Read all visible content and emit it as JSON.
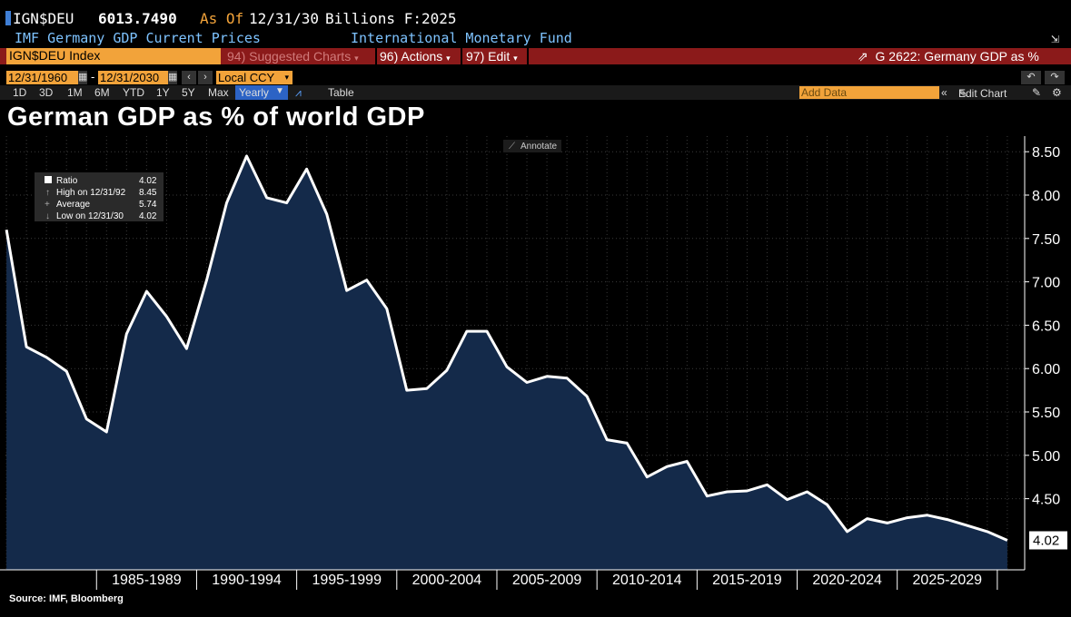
{
  "header": {
    "ticker": "IGN$DEU",
    "value": "6013.7490",
    "as_of_label": "As Of",
    "as_of_date": "12/31/30",
    "units": "Billions F:2025",
    "description": "IMF Germany GDP Current Prices",
    "source_org": "International Monetary Fund"
  },
  "toolbar": {
    "security": "IGN$DEU Index",
    "suggested": "94) Suggested Charts",
    "actions": "96) Actions",
    "edit": "97) Edit",
    "chart_id": "G 2622: Germany GDP as %",
    "start_date": "12/31/1960",
    "end_date": "12/31/2030",
    "currency": "Local CCY",
    "periods": [
      "1D",
      "3D",
      "1M",
      "6M",
      "YTD",
      "1Y",
      "5Y",
      "Max"
    ],
    "frequency": "Yearly",
    "table_label": "Table",
    "add_data_placeholder": "Add Data",
    "edit_chart": "Edit Chart",
    "annotate": "Annotate"
  },
  "colors": {
    "background": "#000000",
    "line": "#ffffff",
    "area_fill": "#142a4a",
    "grid": "#3a3a3a",
    "header_red": "#8b1a1a",
    "orange": "#f2a33a",
    "blue_text": "#7ec3ff"
  },
  "legend": {
    "ratio_label": "Ratio",
    "ratio_value": "4.02",
    "high_label": "High on 12/31/92",
    "high_value": "8.45",
    "avg_label": "Average",
    "avg_value": "5.74",
    "low_label": "Low on 12/31/30",
    "low_value": "4.02"
  },
  "chart_data": {
    "type": "area",
    "title": "German GDP as % of world GDP",
    "source": "Source: IMF, Bloomberg",
    "x": [
      1980,
      1981,
      1982,
      1983,
      1984,
      1985,
      1986,
      1987,
      1988,
      1989,
      1990,
      1991,
      1992,
      1993,
      1994,
      1995,
      1996,
      1997,
      1998,
      1999,
      2000,
      2001,
      2002,
      2003,
      2004,
      2005,
      2006,
      2007,
      2008,
      2009,
      2010,
      2011,
      2012,
      2013,
      2014,
      2015,
      2016,
      2017,
      2018,
      2019,
      2020,
      2021,
      2022,
      2023,
      2024,
      2025,
      2026,
      2027,
      2028,
      2029,
      2030
    ],
    "values": [
      7.6,
      6.25,
      6.13,
      5.97,
      5.42,
      5.27,
      6.4,
      6.89,
      6.6,
      6.23,
      7.02,
      7.91,
      8.45,
      7.97,
      7.91,
      8.3,
      7.78,
      6.9,
      7.02,
      6.69,
      5.75,
      5.77,
      5.98,
      6.43,
      6.43,
      6.02,
      5.84,
      5.91,
      5.89,
      5.68,
      5.18,
      5.14,
      4.75,
      4.87,
      4.93,
      4.53,
      4.58,
      4.59,
      4.66,
      4.49,
      4.58,
      4.43,
      4.12,
      4.27,
      4.22,
      4.28,
      4.31,
      4.26,
      4.19,
      4.12,
      4.02
    ],
    "xlabel": "",
    "ylabel": "",
    "ylim": [
      3.68,
      8.68
    ],
    "y_ticks": [
      4.5,
      5.0,
      5.5,
      6.0,
      6.5,
      7.0,
      7.5,
      8.0,
      8.5
    ],
    "y_tick_labels": [
      "4.50",
      "5.00",
      "5.50",
      "6.00",
      "6.50",
      "7.00",
      "7.50",
      "8.00",
      "8.50"
    ],
    "x_tick_labels": [
      "1985-1989",
      "1990-1994",
      "1995-1999",
      "2000-2004",
      "2005-2009",
      "2010-2014",
      "2015-2019",
      "2020-2024",
      "2025-2029"
    ],
    "last_value_label": "4.02",
    "grid": true
  }
}
